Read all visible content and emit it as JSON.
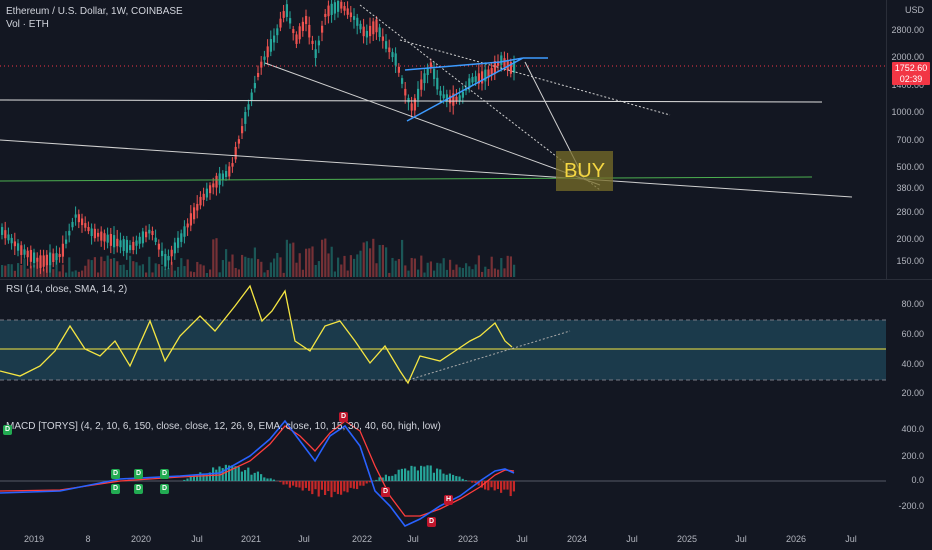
{
  "header": {
    "symbol_line": "Ethereum / U.S. Dollar, 1W, COINBASE",
    "volume_line": "Vol · ETH",
    "currency": "USD"
  },
  "price_tag": {
    "value": "1752.60",
    "countdown": "02:39"
  },
  "buy_label": "BUY",
  "price_axis": [
    "2800.00",
    "2000.00",
    "1400.00",
    "1000.00",
    "700.00",
    "500.00",
    "380.00",
    "280.00",
    "200.00",
    "150.00"
  ],
  "rsi": {
    "title": "RSI (14, close, SMA, 14, 2)",
    "axis": [
      "80.00",
      "60.00",
      "40.00",
      "20.00"
    ]
  },
  "macd": {
    "title": "MACD [TORYS] (4, 2, 10, 6, 150, close, close, 12, 26, 9, EMA, close, 10, 15, 30, 40, 60, high, low)",
    "axis": [
      "400.0",
      "200.0",
      "0.0",
      "-200.0"
    ],
    "markers": [
      {
        "text": "D",
        "kind": "green"
      },
      {
        "text": "D",
        "kind": "green"
      },
      {
        "text": "D",
        "kind": "green"
      },
      {
        "text": "D",
        "kind": "green"
      },
      {
        "text": "D",
        "kind": "green"
      },
      {
        "text": "D",
        "kind": "green"
      },
      {
        "text": "D",
        "kind": "green"
      },
      {
        "text": "D",
        "kind": "red"
      },
      {
        "text": "D",
        "kind": "red"
      },
      {
        "text": "H",
        "kind": "red"
      },
      {
        "text": "D",
        "kind": "red"
      }
    ]
  },
  "time_axis": [
    "2019",
    "8",
    "2020",
    "Jul",
    "2021",
    "Jul",
    "2022",
    "Jul",
    "2023",
    "Jul",
    "2024",
    "Jul",
    "2025",
    "Jul",
    "2026",
    "Jul"
  ],
  "colors": {
    "bg": "#131722",
    "up": "#26a69a",
    "down": "#ef5350",
    "rsi": "#f5e642",
    "rsi_band": "#1b3a4b",
    "macd": "#2962ff",
    "signal": "#ff3d3d",
    "buy": "#f5d742"
  }
}
